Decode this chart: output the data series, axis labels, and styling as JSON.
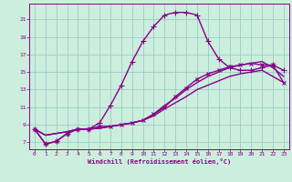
{
  "xlabel": "Windchill (Refroidissement éolien,°C)",
  "bg_color": "#cceedd",
  "line_color": "#880088",
  "grid_color": "#99cccc",
  "x_ticks": [
    0,
    1,
    2,
    3,
    4,
    5,
    6,
    7,
    8,
    9,
    10,
    11,
    12,
    13,
    14,
    15,
    16,
    17,
    18,
    19,
    20,
    21,
    22,
    23
  ],
  "y_ticks": [
    7,
    9,
    11,
    13,
    15,
    17,
    19,
    21
  ],
  "ylim": [
    6.2,
    22.8
  ],
  "xlim": [
    -0.5,
    23.5
  ],
  "series": [
    {
      "x": [
        0,
        1,
        2,
        3,
        4,
        5,
        6,
        7,
        8,
        9,
        10,
        11,
        12,
        13,
        14,
        15,
        16,
        17,
        18,
        19,
        20,
        21,
        22,
        23
      ],
      "y": [
        8.5,
        6.8,
        7.1,
        8.0,
        8.5,
        8.5,
        8.8,
        8.8,
        9.0,
        9.2,
        9.5,
        10.2,
        11.0,
        12.2,
        13.2,
        14.2,
        14.8,
        15.2,
        15.6,
        15.8,
        16.0,
        15.8,
        15.8,
        13.8
      ],
      "marker": "x",
      "ms": 3,
      "lw": 1.0
    },
    {
      "x": [
        0,
        1,
        2,
        3,
        4,
        5,
        6,
        7,
        8,
        9,
        10,
        11,
        12,
        13,
        14,
        15,
        16,
        17,
        18,
        19,
        20,
        21,
        22,
        23
      ],
      "y": [
        8.5,
        6.8,
        7.1,
        8.0,
        8.5,
        8.5,
        9.2,
        11.2,
        13.5,
        16.2,
        18.5,
        20.2,
        21.5,
        21.8,
        21.8,
        21.5,
        18.5,
        16.5,
        15.5,
        15.2,
        15.2,
        15.5,
        15.8,
        15.2
      ],
      "marker": "+",
      "ms": 4,
      "lw": 1.0
    },
    {
      "x": [
        0,
        1,
        2,
        3,
        4,
        5,
        6,
        7,
        8,
        9,
        10,
        11,
        12,
        13,
        14,
        15,
        16,
        17,
        18,
        19,
        20,
        21,
        22,
        23
      ],
      "y": [
        8.5,
        7.8,
        8.0,
        8.2,
        8.5,
        8.5,
        8.6,
        8.8,
        9.0,
        9.2,
        9.5,
        10.0,
        10.8,
        11.5,
        12.2,
        13.0,
        13.5,
        14.0,
        14.5,
        14.8,
        15.0,
        15.2,
        14.5,
        13.8
      ],
      "marker": null,
      "ms": 0,
      "lw": 1.0
    },
    {
      "x": [
        0,
        1,
        2,
        3,
        4,
        5,
        6,
        7,
        8,
        9,
        10,
        11,
        12,
        13,
        14,
        15,
        16,
        17,
        18,
        19,
        20,
        21,
        22,
        23
      ],
      "y": [
        8.5,
        7.8,
        8.0,
        8.2,
        8.5,
        8.5,
        8.6,
        8.8,
        9.0,
        9.2,
        9.5,
        10.2,
        11.2,
        12.0,
        13.0,
        13.8,
        14.5,
        15.0,
        15.5,
        15.8,
        16.0,
        16.2,
        15.5,
        14.5
      ],
      "marker": null,
      "ms": 0,
      "lw": 1.0
    }
  ]
}
